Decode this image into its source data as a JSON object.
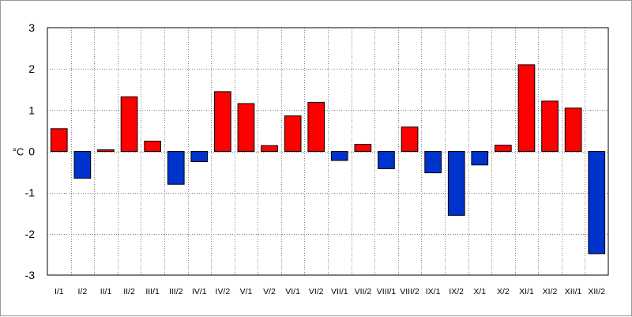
{
  "chart_data": {
    "type": "bar",
    "title": "",
    "xlabel": "",
    "ylabel": "°C",
    "ylim": [
      -3,
      3
    ],
    "yticks": [
      3,
      2,
      1,
      0,
      -1,
      -2,
      -3
    ],
    "grid": true,
    "legend": "none",
    "colors": {
      "positive": "#ff0000",
      "negative": "#0033cc",
      "outline": "#000000",
      "grid": "#808080"
    },
    "categories": [
      "I/1",
      "I/2",
      "II/1",
      "II/2",
      "III/1",
      "III/2",
      "IV/1",
      "IV/2",
      "V/1",
      "V/2",
      "VI/1",
      "VI/2",
      "VII/1",
      "VII/2",
      "VIII/1",
      "VIII/2",
      "IX/1",
      "IX/2",
      "X/1",
      "X/2",
      "XI/1",
      "XI/2",
      "XII/1",
      "XII/2"
    ],
    "values": [
      0.55,
      -0.65,
      0.04,
      1.32,
      0.25,
      -0.8,
      -0.25,
      1.45,
      1.16,
      0.14,
      0.86,
      1.19,
      -0.22,
      0.17,
      -0.42,
      0.59,
      -0.52,
      -1.55,
      -0.33,
      0.15,
      2.1,
      1.22,
      1.05,
      -2.48
    ]
  }
}
